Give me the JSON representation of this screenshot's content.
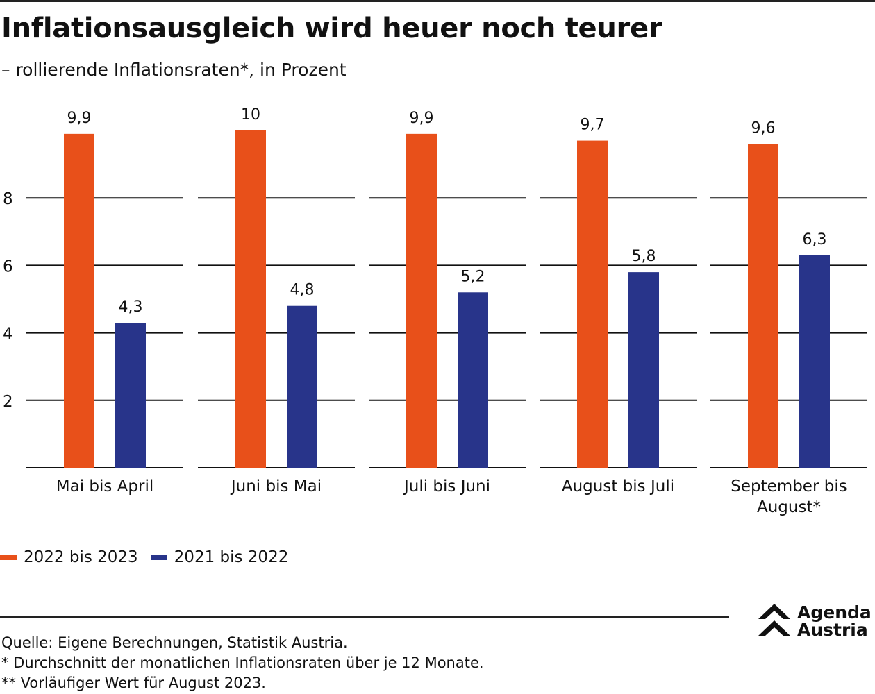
{
  "header": {
    "title": "Inflationsausgleich wird heuer noch teurer",
    "subtitle": "– rollierende Inflationsraten*, in Prozent"
  },
  "colors": {
    "series_2022": "#E8501A",
    "series_2021": "#28348A",
    "grid": "#111111"
  },
  "chart_data": {
    "type": "bar",
    "categories": [
      [
        "Mai bis April"
      ],
      [
        "Juni bis Mai"
      ],
      [
        "Juli bis Juni"
      ],
      [
        "August bis Juli"
      ],
      [
        "September bis",
        "August*"
      ]
    ],
    "series": [
      {
        "name": "2022 bis 2023",
        "values": [
          9.9,
          10,
          9.9,
          9.7,
          9.6
        ],
        "labels": [
          "9,9",
          "10",
          "9,9",
          "9,7",
          "9,6"
        ]
      },
      {
        "name": "2021 bis 2022",
        "values": [
          4.3,
          4.8,
          5.2,
          5.8,
          6.3
        ],
        "labels": [
          "4,3",
          "4,8",
          "5,2",
          "5,8",
          "6,3"
        ]
      }
    ],
    "yticks": [
      2,
      4,
      6,
      8
    ],
    "ylim": [
      0,
      10
    ],
    "grid": true,
    "legend": "bottom-left"
  },
  "legend": {
    "item_1": "2022 bis 2023",
    "item_2": "2021 bis 2022"
  },
  "footnotes": {
    "source": "Quelle: Eigene Berechnungen, Statistik Austria.",
    "note_1": "* Durchschnitt der monatlichen Inflationsraten über je 12 Monate.",
    "note_2": "** Vorläufiger Wert für August 2023."
  },
  "logo": {
    "line_1": "Agenda",
    "line_2": "Austria"
  }
}
